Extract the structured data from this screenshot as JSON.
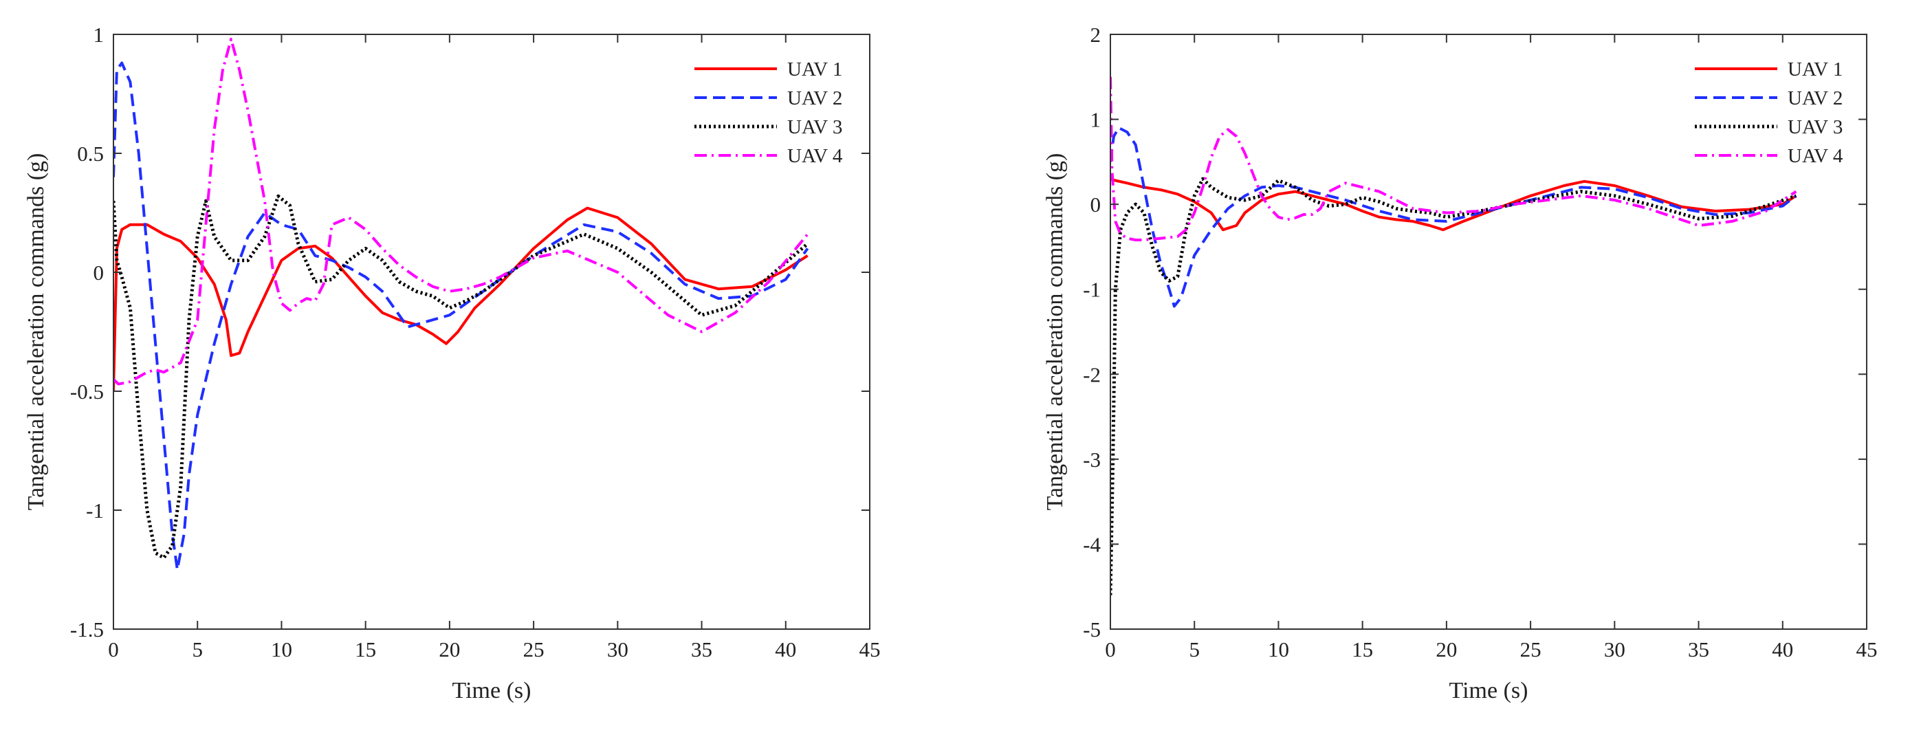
{
  "chart_data": [
    {
      "type": "line",
      "title": "",
      "xlabel": "Time (s)",
      "ylabel": "Tangential acceleration commands (g)",
      "xlim": [
        0,
        45
      ],
      "ylim": [
        -1.5,
        1
      ],
      "xticks": [
        "0",
        "5",
        "10",
        "15",
        "20",
        "25",
        "30",
        "35",
        "40",
        "45"
      ],
      "yticks": [
        "-1.5",
        "-1",
        "-0.5",
        "0",
        "0.5",
        "1"
      ],
      "legend_position": "top-right",
      "series": [
        {
          "name": "UAV 1",
          "color": "#ff0000",
          "style": "solid",
          "x": [
            0,
            0.2,
            0.5,
            1,
            2,
            3,
            4,
            5,
            6,
            6.7,
            7,
            7.5,
            8,
            9,
            10,
            11,
            12,
            13,
            14,
            15,
            16,
            17,
            18,
            19,
            19.8,
            20.5,
            21.5,
            23,
            25,
            27,
            28.2,
            30,
            32,
            34,
            36,
            38,
            40,
            41.3
          ],
          "y": [
            -0.5,
            0.1,
            0.18,
            0.2,
            0.2,
            0.16,
            0.13,
            0.06,
            -0.05,
            -0.2,
            -0.35,
            -0.34,
            -0.25,
            -0.1,
            0.05,
            0.1,
            0.11,
            0.06,
            -0.02,
            -0.1,
            -0.17,
            -0.2,
            -0.22,
            -0.26,
            -0.3,
            -0.25,
            -0.15,
            -0.05,
            0.1,
            0.22,
            0.27,
            0.23,
            0.12,
            -0.03,
            -0.07,
            -0.06,
            0.01,
            0.07
          ]
        },
        {
          "name": "UAV 2",
          "color": "#1f2fff",
          "style": "dashed",
          "x": [
            0,
            0.2,
            0.5,
            1,
            1.5,
            2,
            2.5,
            3,
            3.5,
            3.8,
            4.2,
            4.5,
            5,
            6,
            7,
            8,
            9,
            10,
            11,
            12,
            13,
            14,
            15,
            16,
            17,
            17.5,
            18,
            19,
            20,
            21,
            22,
            23,
            25,
            28,
            30,
            32,
            34,
            36,
            38,
            40,
            41.3
          ],
          "y": [
            0.4,
            0.85,
            0.88,
            0.8,
            0.5,
            0.1,
            -0.3,
            -0.7,
            -1.1,
            -1.25,
            -1.1,
            -0.85,
            -0.6,
            -0.3,
            -0.05,
            0.15,
            0.25,
            0.2,
            0.18,
            0.07,
            0.05,
            0.02,
            -0.02,
            -0.08,
            -0.18,
            -0.23,
            -0.22,
            -0.2,
            -0.18,
            -0.13,
            -0.08,
            -0.03,
            0.07,
            0.2,
            0.17,
            0.08,
            -0.05,
            -0.11,
            -0.1,
            -0.03,
            0.1
          ]
        },
        {
          "name": "UAV 3",
          "color": "#000000",
          "style": "dotted",
          "x": [
            0,
            0.2,
            0.5,
            1,
            1.5,
            2,
            2.5,
            3,
            3.5,
            4,
            4.5,
            5,
            5.5,
            6,
            7,
            8,
            9,
            9.8,
            10.5,
            11,
            12,
            13,
            14,
            15,
            16,
            17,
            18,
            19,
            20,
            21,
            22,
            23,
            25,
            28,
            30,
            32,
            35,
            37,
            39,
            41.3
          ],
          "y": [
            0.3,
            0.05,
            -0.02,
            -0.15,
            -0.6,
            -1.0,
            -1.18,
            -1.2,
            -1.15,
            -0.9,
            -0.2,
            0.15,
            0.3,
            0.15,
            0.05,
            0.05,
            0.15,
            0.32,
            0.28,
            0.12,
            -0.04,
            -0.03,
            0.05,
            0.1,
            0.05,
            -0.04,
            -0.08,
            -0.1,
            -0.15,
            -0.12,
            -0.08,
            -0.03,
            0.07,
            0.16,
            0.1,
            0.0,
            -0.18,
            -0.14,
            -0.02,
            0.12
          ]
        },
        {
          "name": "UAV 4",
          "color": "#ff00ff",
          "style": "dashdot",
          "x": [
            0,
            0.3,
            1,
            1.5,
            2,
            2.5,
            3,
            4,
            5,
            5.5,
            6,
            6.5,
            7,
            7.5,
            8,
            9,
            9.5,
            10,
            10.5,
            11,
            11.5,
            12,
            12.5,
            13,
            14,
            15,
            16,
            17,
            18,
            19,
            20,
            21,
            22,
            23,
            25,
            27,
            30,
            33,
            35,
            37,
            39,
            41.3
          ],
          "y": [
            -0.45,
            -0.47,
            -0.46,
            -0.44,
            -0.42,
            -0.41,
            -0.42,
            -0.38,
            -0.2,
            0.2,
            0.6,
            0.85,
            0.98,
            0.85,
            0.68,
            0.3,
            0.0,
            -0.13,
            -0.16,
            -0.13,
            -0.11,
            -0.12,
            -0.05,
            0.2,
            0.23,
            0.18,
            0.1,
            0.03,
            -0.02,
            -0.06,
            -0.08,
            -0.07,
            -0.05,
            -0.02,
            0.06,
            0.09,
            0.0,
            -0.18,
            -0.25,
            -0.17,
            -0.04,
            0.16
          ]
        }
      ]
    },
    {
      "type": "line",
      "title": "",
      "xlabel": "Time (s)",
      "ylabel": "Tangential acceleration commands (g)",
      "xlim": [
        0,
        45
      ],
      "ylim": [
        -5,
        2
      ],
      "xticks": [
        "0",
        "5",
        "10",
        "15",
        "20",
        "25",
        "30",
        "35",
        "40",
        "45"
      ],
      "yticks": [
        "-5",
        "-4",
        "-3",
        "-2",
        "-1",
        "0",
        "1",
        "2"
      ],
      "legend_position": "top-right",
      "series": [
        {
          "name": "UAV 1",
          "color": "#ff0000",
          "style": "solid",
          "x": [
            0,
            0.3,
            1,
            2,
            3,
            4,
            5,
            6,
            6.7,
            7.5,
            8,
            9,
            10,
            11,
            12,
            13,
            14,
            15,
            16,
            17,
            18,
            19,
            19.8,
            21,
            23,
            25,
            27,
            28.2,
            30,
            32,
            34,
            36,
            38,
            40,
            40.8
          ],
          "y": [
            0.3,
            0.28,
            0.25,
            0.2,
            0.17,
            0.12,
            0.03,
            -0.1,
            -0.3,
            -0.25,
            -0.1,
            0.05,
            0.12,
            0.15,
            0.1,
            0.05,
            0.0,
            -0.08,
            -0.15,
            -0.18,
            -0.2,
            -0.25,
            -0.3,
            -0.2,
            -0.05,
            0.1,
            0.22,
            0.27,
            0.22,
            0.1,
            -0.03,
            -0.08,
            -0.06,
            0.0,
            0.1
          ]
        },
        {
          "name": "UAV 2",
          "color": "#1f2fff",
          "style": "dashed",
          "x": [
            0,
            0.2,
            0.5,
            1,
            1.5,
            2,
            2.5,
            3,
            3.5,
            3.8,
            4.2,
            5,
            6,
            7,
            8,
            9,
            10,
            11,
            12,
            14,
            16,
            18,
            20,
            22,
            24,
            26,
            28,
            30,
            32,
            34,
            36,
            38,
            40,
            40.8
          ],
          "y": [
            0.5,
            0.8,
            0.9,
            0.85,
            0.7,
            0.2,
            -0.3,
            -0.7,
            -1.0,
            -1.2,
            -1.1,
            -0.6,
            -0.3,
            -0.05,
            0.1,
            0.2,
            0.22,
            0.2,
            0.15,
            0.05,
            -0.08,
            -0.18,
            -0.2,
            -0.1,
            0.0,
            0.1,
            0.2,
            0.18,
            0.08,
            -0.05,
            -0.12,
            -0.1,
            -0.02,
            0.1
          ]
        },
        {
          "name": "UAV 3",
          "color": "#000000",
          "style": "dotted",
          "x": [
            0,
            0.15,
            0.3,
            0.6,
            1,
            1.5,
            2,
            2.5,
            3,
            3.5,
            4,
            4.5,
            5,
            5.5,
            6,
            7,
            8,
            9,
            10,
            11,
            12,
            13,
            14,
            15,
            16,
            17,
            18,
            19,
            20,
            22,
            24,
            26,
            28,
            30,
            32,
            35,
            37,
            39,
            40.8
          ],
          "y": [
            -4.6,
            -3.0,
            -1.0,
            -0.3,
            -0.1,
            0.0,
            -0.1,
            -0.5,
            -0.8,
            -0.9,
            -0.85,
            -0.3,
            0.1,
            0.3,
            0.2,
            0.08,
            0.05,
            0.1,
            0.28,
            0.2,
            0.05,
            -0.02,
            0.0,
            0.08,
            0.03,
            -0.05,
            -0.08,
            -0.1,
            -0.15,
            -0.08,
            0.0,
            0.08,
            0.15,
            0.1,
            0.0,
            -0.17,
            -0.14,
            -0.02,
            0.1
          ]
        },
        {
          "name": "UAV 4",
          "color": "#ff00ff",
          "style": "dashdot",
          "x": [
            0,
            0.1,
            0.3,
            0.6,
            1,
            1.5,
            2,
            3,
            4,
            4.5,
            5,
            5.5,
            6,
            6.5,
            7,
            7.5,
            8,
            8.5,
            9,
            9.5,
            10,
            10.5,
            11,
            11.5,
            12,
            12.5,
            13,
            14,
            16,
            18,
            20,
            22,
            24,
            26,
            28,
            30,
            32,
            35,
            37,
            39,
            40.8
          ],
          "y": [
            1.5,
            0.4,
            -0.2,
            -0.35,
            -0.4,
            -0.42,
            -0.42,
            -0.4,
            -0.38,
            -0.3,
            -0.1,
            0.2,
            0.55,
            0.8,
            0.88,
            0.8,
            0.6,
            0.35,
            0.1,
            -0.05,
            -0.15,
            -0.18,
            -0.16,
            -0.12,
            -0.12,
            -0.05,
            0.15,
            0.25,
            0.15,
            -0.05,
            -0.1,
            -0.08,
            0.0,
            0.05,
            0.1,
            0.05,
            -0.05,
            -0.25,
            -0.2,
            -0.08,
            0.15
          ]
        }
      ]
    }
  ]
}
